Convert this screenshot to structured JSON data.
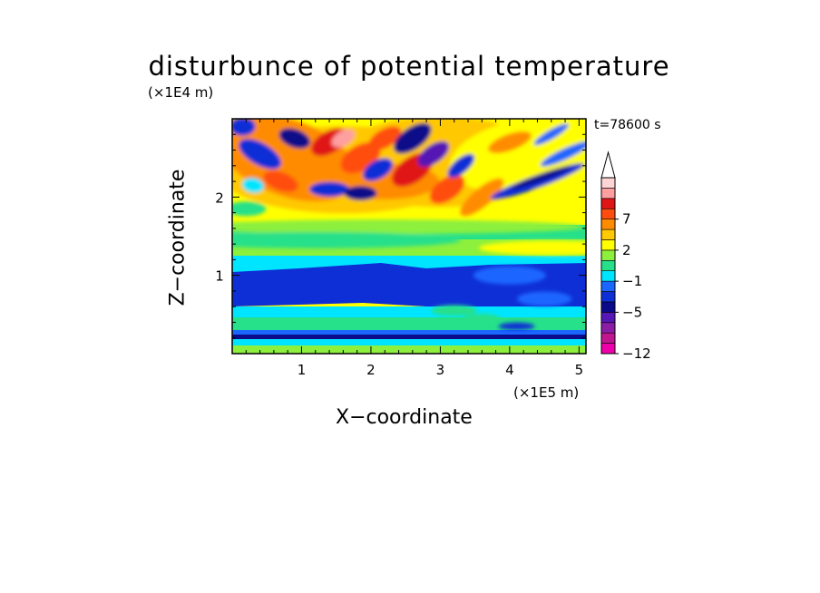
{
  "chart_data": {
    "type": "heatmap",
    "title": "disturbunce of potential temperature",
    "xlabel": "X−coordinate",
    "ylabel": "Z−coordinate",
    "x_scale_label": "(×1E5 m)",
    "y_scale_label": "(×1E4 m)",
    "time_label": "t=78600 s",
    "xlim": [
      0,
      5.1
    ],
    "ylim": [
      0,
      3.0
    ],
    "x_ticks": [
      "1",
      "2",
      "3",
      "4",
      "5"
    ],
    "y_ticks": [
      "1",
      "2"
    ],
    "colorbar": {
      "levels": [
        -12,
        -11,
        -9,
        -7,
        -5,
        -4,
        -3,
        -1,
        0,
        1,
        2,
        3,
        5,
        7,
        8,
        9,
        10
      ],
      "labels": [
        "−12",
        "−5",
        "−1",
        "2",
        "7"
      ],
      "colors": [
        "#ee00aa",
        "#c0168f",
        "#8a1ea6",
        "#5517b5",
        "#0a0a8a",
        "#0f2fd6",
        "#1a66ff",
        "#00e5ff",
        "#26e08a",
        "#8cf03c",
        "#ffff00",
        "#ffc800",
        "#ff8c00",
        "#ff4d10",
        "#e01515",
        "#ff9fa0",
        "#ffd4d4"
      ],
      "extend_arrow": "top"
    },
    "pattern": {
      "surface_band_z": 0.2,
      "lower_blue_layer_z": [
        0.65,
        1.05
      ],
      "upper_wave_region_z": [
        1.9,
        3.0
      ],
      "dominant_warm_anomaly_x": [
        1.3,
        1.6,
        2.6,
        3.2
      ],
      "tilted_blue_band_x": [
        4.3,
        5.0
      ]
    }
  }
}
